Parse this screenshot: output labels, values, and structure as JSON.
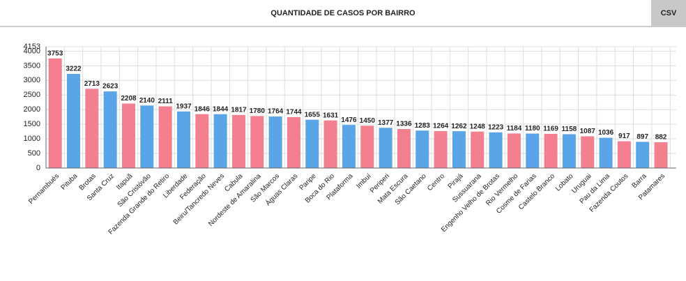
{
  "chart_data": {
    "type": "bar",
    "title": "QUANTIDADE DE CASOS POR BAIRRO",
    "button": "CSV",
    "categories": [
      "Pernambués",
      "Pituba",
      "Brotas",
      "Santa Cruz",
      "Itapuã",
      "São Cristóvão",
      "Fazenda Grande do Retiro",
      "Liberdade",
      "Federação",
      "Beiru/Tancredo Neves",
      "Cabula",
      "Nordeste de Amaralina",
      "São Marcos",
      "Águas Claras",
      "Paripe",
      "Boca do Rio",
      "Plataforma",
      "Imbuí",
      "Periperi",
      "Mata Escura",
      "São Caetano",
      "Centro",
      "Pirajá",
      "Sussuarana",
      "Engenho Velho de Brotas",
      "Rio Vermelho",
      "Cosme de Farias",
      "Castelo Branco",
      "Lobato",
      "Uruguai",
      "Pau da Lima",
      "Fazenda Coutos",
      "Barra",
      "Patamares"
    ],
    "values": [
      3753,
      3222,
      2713,
      2623,
      2208,
      2140,
      2111,
      1937,
      1846,
      1844,
      1817,
      1780,
      1764,
      1744,
      1655,
      1631,
      1476,
      1450,
      1377,
      1336,
      1283,
      1264,
      1262,
      1248,
      1223,
      1184,
      1180,
      1169,
      1158,
      1087,
      1036,
      917,
      897,
      882
    ],
    "colors": [
      "#f4808f",
      "#5aa5e8",
      "#f4808f",
      "#5aa5e8",
      "#f4808f",
      "#5aa5e8",
      "#f4808f",
      "#5aa5e8",
      "#f4808f",
      "#5aa5e8",
      "#f4808f",
      "#f4808f",
      "#5aa5e8",
      "#f4808f",
      "#5aa5e8",
      "#f4808f",
      "#5aa5e8",
      "#f4808f",
      "#5aa5e8",
      "#f4808f",
      "#5aa5e8",
      "#f4808f",
      "#5aa5e8",
      "#f4808f",
      "#5aa5e8",
      "#f4808f",
      "#5aa5e8",
      "#f4808f",
      "#5aa5e8",
      "#f4808f",
      "#5aa5e8",
      "#f4808f",
      "#5aa5e8",
      "#f4808f"
    ],
    "ylim": [
      0,
      4153
    ],
    "yticks": [
      0,
      500,
      1000,
      1500,
      2000,
      2500,
      3000,
      3500,
      4000,
      4153
    ],
    "grid": true
  }
}
